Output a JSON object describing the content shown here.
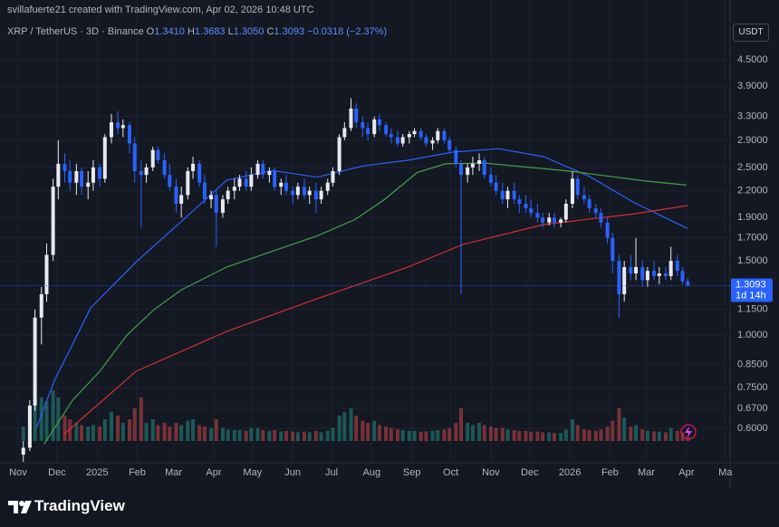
{
  "header": {
    "credit": "svillafuerte21 created with TradingView.com, Apr 02, 2026 10:48 UTC",
    "symbol": "XRP / TetherUS · 3D · Binance",
    "ohlc": [
      {
        "key": "O",
        "value": "1.3410"
      },
      {
        "key": "H",
        "value": "1.3683"
      },
      {
        "key": "L",
        "value": "1.3050"
      },
      {
        "key": "C",
        "value": "1.3093"
      }
    ],
    "change": "−0.0318 (−2.37%)",
    "currency": "USDT"
  },
  "footer": {
    "brand": "TradingView"
  },
  "chart_data": {
    "type": "candlestick",
    "log_scale": true,
    "grid": true,
    "up_color": "#e8eaf0",
    "down_color": "#2962ff",
    "xlim": [
      -14,
      549
    ],
    "ylim": [
      0.5,
      5.6
    ],
    "xticks": [
      {
        "value": 0,
        "label": "Nov"
      },
      {
        "value": 30,
        "label": "Dec"
      },
      {
        "value": 61,
        "label": "2025"
      },
      {
        "value": 92,
        "label": "Feb"
      },
      {
        "value": 120,
        "label": "Mar"
      },
      {
        "value": 151,
        "label": "Apr"
      },
      {
        "value": 181,
        "label": "May"
      },
      {
        "value": 212,
        "label": "Jun"
      },
      {
        "value": 242,
        "label": "Jul"
      },
      {
        "value": 273,
        "label": "Aug"
      },
      {
        "value": 304,
        "label": "Sep"
      },
      {
        "value": 334,
        "label": "Oct"
      },
      {
        "value": 365,
        "label": "Nov"
      },
      {
        "value": 395,
        "label": "Dec"
      },
      {
        "value": 426,
        "label": "2026"
      },
      {
        "value": 457,
        "label": "Feb"
      },
      {
        "value": 485,
        "label": "Mar"
      },
      {
        "value": 516,
        "label": "Apr"
      },
      {
        "value": 546,
        "label": "Ma"
      }
    ],
    "yticks": [
      {
        "value": 4.5,
        "label": "4.5000"
      },
      {
        "value": 3.9,
        "label": "3.9000"
      },
      {
        "value": 3.3,
        "label": "3.3000"
      },
      {
        "value": 2.9,
        "label": "2.9000"
      },
      {
        "value": 2.5,
        "label": "2.5000"
      },
      {
        "value": 2.2,
        "label": "2.2000"
      },
      {
        "value": 1.9,
        "label": "1.9000"
      },
      {
        "value": 1.7,
        "label": "1.7000"
      },
      {
        "value": 1.5,
        "label": "1.5000"
      },
      {
        "value": 1.15,
        "label": "1.1500"
      },
      {
        "value": 1.0,
        "label": "1.0000"
      },
      {
        "value": 0.85,
        "label": "0.8500"
      },
      {
        "value": 0.75,
        "label": "0.7500"
      },
      {
        "value": 0.67,
        "label": "0.6700"
      },
      {
        "value": 0.6,
        "label": "0.6000"
      }
    ],
    "x": [
      4,
      9,
      13,
      18,
      22,
      27,
      31,
      36,
      40,
      45,
      49,
      54,
      58,
      63,
      67,
      72,
      77,
      81,
      86,
      90,
      95,
      99,
      104,
      108,
      113,
      117,
      122,
      126,
      131,
      135,
      140,
      144,
      149,
      153,
      158,
      162,
      167,
      171,
      176,
      180,
      185,
      189,
      194,
      198,
      203,
      207,
      212,
      216,
      221,
      225,
      230,
      234,
      239,
      243,
      248,
      252,
      257,
      261,
      266,
      270,
      275,
      279,
      284,
      288,
      293,
      297,
      302,
      306,
      311,
      315,
      320,
      324,
      329,
      333,
      338,
      342,
      347,
      351,
      356,
      360,
      365,
      369,
      374,
      378,
      383,
      387,
      392,
      396,
      401,
      405,
      410,
      414,
      419,
      423,
      428,
      432,
      437,
      441,
      446,
      450,
      455,
      459,
      464,
      468,
      473,
      477,
      482,
      486,
      491,
      495,
      500,
      504,
      509,
      513,
      517
    ],
    "open": [
      0.52,
      0.54,
      0.68,
      1.1,
      1.25,
      1.55,
      2.25,
      2.55,
      2.45,
      2.3,
      2.45,
      2.25,
      2.3,
      2.5,
      2.35,
      2.95,
      3.2,
      3.1,
      3.15,
      2.85,
      2.45,
      2.4,
      2.5,
      2.75,
      2.6,
      2.4,
      2.25,
      2.05,
      2.15,
      2.45,
      2.55,
      2.3,
      2.1,
      2.15,
      1.95,
      2.1,
      2.2,
      2.25,
      2.35,
      2.25,
      2.4,
      2.55,
      2.4,
      2.45,
      2.25,
      2.3,
      2.2,
      2.15,
      2.25,
      2.15,
      2.2,
      2.1,
      2.2,
      2.3,
      2.45,
      2.95,
      3.1,
      3.45,
      3.2,
      3.1,
      3.0,
      3.25,
      3.15,
      3.0,
      2.95,
      2.85,
      2.95,
      3.0,
      3.05,
      2.95,
      2.85,
      2.9,
      3.05,
      2.9,
      2.75,
      2.55,
      2.4,
      2.5,
      2.55,
      2.6,
      2.4,
      2.3,
      2.2,
      2.1,
      2.2,
      2.1,
      2.05,
      2.0,
      1.95,
      1.9,
      1.85,
      1.9,
      1.85,
      1.88,
      2.05,
      2.35,
      2.15,
      2.1,
      2.0,
      1.95,
      1.85,
      1.7,
      1.5,
      1.25,
      1.45,
      1.4,
      1.45,
      1.35,
      1.42,
      1.38,
      1.4,
      1.38,
      1.5,
      1.42,
      1.341
    ],
    "high": [
      0.56,
      0.7,
      1.15,
      1.3,
      1.65,
      2.35,
      2.9,
      2.7,
      2.6,
      2.55,
      2.5,
      2.45,
      2.6,
      2.55,
      3.0,
      3.35,
      3.4,
      3.25,
      3.2,
      2.95,
      2.6,
      2.55,
      2.8,
      2.8,
      2.7,
      2.55,
      2.35,
      2.25,
      2.5,
      2.65,
      2.6,
      2.4,
      2.2,
      2.2,
      2.15,
      2.25,
      2.35,
      2.4,
      2.45,
      2.5,
      2.6,
      2.6,
      2.5,
      2.5,
      2.35,
      2.4,
      2.25,
      2.3,
      2.35,
      2.25,
      2.3,
      2.25,
      2.35,
      2.5,
      3.0,
      3.2,
      3.65,
      3.55,
      3.3,
      3.2,
      3.3,
      3.35,
      3.2,
      3.1,
      3.05,
      3.0,
      3.05,
      3.1,
      3.1,
      3.0,
      2.95,
      3.1,
      3.1,
      2.95,
      2.8,
      2.6,
      2.55,
      2.65,
      2.7,
      2.65,
      2.5,
      2.4,
      2.3,
      2.25,
      2.3,
      2.15,
      2.15,
      2.1,
      2.05,
      1.95,
      1.95,
      1.95,
      1.9,
      2.1,
      2.45,
      2.4,
      2.25,
      2.15,
      2.05,
      2.0,
      1.9,
      1.75,
      1.55,
      1.5,
      1.55,
      1.7,
      1.5,
      1.45,
      1.5,
      1.45,
      1.45,
      1.62,
      1.55,
      1.45,
      1.3683
    ],
    "low": [
      0.5,
      0.53,
      0.66,
      0.95,
      1.2,
      1.5,
      2.1,
      2.3,
      2.2,
      2.15,
      2.15,
      2.1,
      2.2,
      2.25,
      2.3,
      2.85,
      3.0,
      2.95,
      2.7,
      2.3,
      1.8,
      2.3,
      2.45,
      2.55,
      2.35,
      2.2,
      1.95,
      1.9,
      2.1,
      2.35,
      2.25,
      2.05,
      2.0,
      1.62,
      1.9,
      2.05,
      2.1,
      2.2,
      2.2,
      2.2,
      2.35,
      2.35,
      2.3,
      2.2,
      2.15,
      2.15,
      2.05,
      2.1,
      2.1,
      2.05,
      1.95,
      2.05,
      2.15,
      2.25,
      2.4,
      2.9,
      3.05,
      3.1,
      2.95,
      2.9,
      2.95,
      3.05,
      2.95,
      2.85,
      2.8,
      2.8,
      2.85,
      2.95,
      2.9,
      2.8,
      2.75,
      2.85,
      2.85,
      2.7,
      2.5,
      1.25,
      2.3,
      2.4,
      2.45,
      2.35,
      2.25,
      2.15,
      2.05,
      2.0,
      2.05,
      1.95,
      1.95,
      1.9,
      1.85,
      1.8,
      1.82,
      1.8,
      1.8,
      1.85,
      2.0,
      2.1,
      2.05,
      1.95,
      1.9,
      1.8,
      1.65,
      1.4,
      1.1,
      1.2,
      1.35,
      1.35,
      1.3,
      1.3,
      1.35,
      1.32,
      1.35,
      1.35,
      1.38,
      1.32,
      1.305
    ],
    "close": [
      0.54,
      0.68,
      1.1,
      1.25,
      1.55,
      2.25,
      2.55,
      2.45,
      2.3,
      2.45,
      2.25,
      2.3,
      2.5,
      2.35,
      2.95,
      3.2,
      3.1,
      3.15,
      2.85,
      2.45,
      2.4,
      2.5,
      2.75,
      2.6,
      2.4,
      2.25,
      2.05,
      2.15,
      2.45,
      2.55,
      2.3,
      2.1,
      2.15,
      1.95,
      2.1,
      2.2,
      2.25,
      2.35,
      2.25,
      2.4,
      2.55,
      2.4,
      2.45,
      2.25,
      2.3,
      2.2,
      2.15,
      2.25,
      2.15,
      2.2,
      2.1,
      2.2,
      2.3,
      2.45,
      2.95,
      3.1,
      3.45,
      3.2,
      3.1,
      3.0,
      3.25,
      3.15,
      3.0,
      2.95,
      2.85,
      2.95,
      3.0,
      3.05,
      2.95,
      2.85,
      2.9,
      3.05,
      2.9,
      2.75,
      2.55,
      2.4,
      2.5,
      2.55,
      2.6,
      2.4,
      2.3,
      2.2,
      2.1,
      2.2,
      2.1,
      2.05,
      2.0,
      1.95,
      1.9,
      1.85,
      1.9,
      1.85,
      1.88,
      2.05,
      2.35,
      2.15,
      2.1,
      2.0,
      1.95,
      1.85,
      1.7,
      1.5,
      1.25,
      1.45,
      1.4,
      1.45,
      1.35,
      1.42,
      1.38,
      1.4,
      1.38,
      1.5,
      1.42,
      1.341,
      1.3093
    ],
    "volume": [
      20,
      40,
      80,
      60,
      55,
      70,
      60,
      35,
      30,
      25,
      22,
      20,
      22,
      20,
      30,
      40,
      35,
      25,
      30,
      45,
      60,
      25,
      30,
      22,
      25,
      20,
      25,
      22,
      28,
      30,
      22,
      20,
      18,
      30,
      18,
      16,
      15,
      15,
      14,
      18,
      18,
      15,
      14,
      15,
      13,
      14,
      13,
      12,
      13,
      12,
      14,
      12,
      14,
      18,
      35,
      40,
      45,
      35,
      28,
      25,
      28,
      22,
      20,
      18,
      16,
      15,
      14,
      14,
      13,
      13,
      14,
      15,
      16,
      18,
      25,
      45,
      25,
      22,
      25,
      22,
      20,
      18,
      18,
      16,
      15,
      14,
      14,
      13,
      13,
      12,
      12,
      11,
      11,
      16,
      30,
      22,
      16,
      15,
      14,
      16,
      20,
      28,
      45,
      32,
      20,
      22,
      16,
      14,
      13,
      13,
      12,
      18,
      14,
      12,
      6
    ],
    "volume_lim": [
      0,
      100
    ],
    "lines": [
      {
        "color": "#2962ff",
        "x": [
          14,
          28,
          42,
          56,
          91,
          126,
          161,
          196,
          231,
          266,
          301,
          336,
          371,
          406,
          441,
          476,
          517
        ],
        "values": [
          0.6,
          0.78,
          0.95,
          1.16,
          1.49,
          1.86,
          2.33,
          2.46,
          2.37,
          2.52,
          2.6,
          2.72,
          2.77,
          2.65,
          2.38,
          2.06,
          1.79
        ]
      },
      {
        "color": "#43a047",
        "x": [
          20,
          42,
          63,
          84,
          105,
          126,
          161,
          196,
          231,
          260,
          283,
          308,
          330,
          360,
          395,
          426,
          457,
          485,
          516
        ],
        "values": [
          0.55,
          0.7,
          0.82,
          1.0,
          1.15,
          1.28,
          1.45,
          1.58,
          1.72,
          1.88,
          2.1,
          2.43,
          2.55,
          2.56,
          2.5,
          2.45,
          2.38,
          2.32,
          2.27
        ]
      },
      {
        "color": "#d32f2f",
        "x": [
          35,
          91,
          161,
          231,
          301,
          343,
          406,
          476,
          517
        ],
        "values": [
          0.58,
          0.82,
          1.02,
          1.22,
          1.45,
          1.64,
          1.83,
          1.94,
          2.03
        ]
      }
    ],
    "price_label": "1.3093",
    "countdown": "1d 14h"
  }
}
